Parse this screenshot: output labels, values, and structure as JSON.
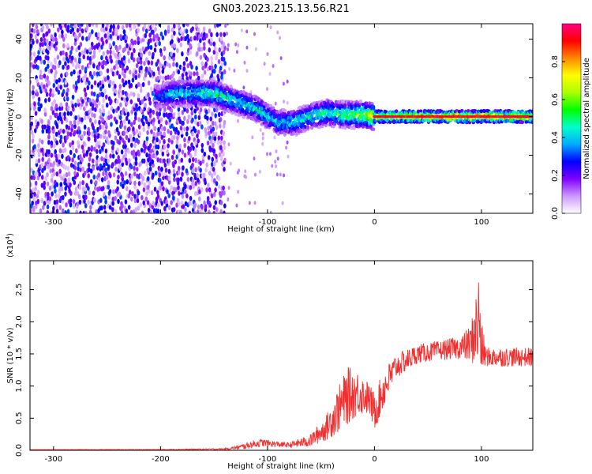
{
  "title": "GN03.2023.215.13.56.R21",
  "chart_data": [
    {
      "type": "heatmap",
      "xlabel": "Height of straight line (km)",
      "ylabel": "Frequency (Hz)",
      "xlim": [
        -322,
        148
      ],
      "ylim": [
        -50,
        48
      ],
      "xticks": [
        -300,
        -200,
        -100,
        0,
        100
      ],
      "yticks": [
        -40,
        -20,
        0,
        20,
        40
      ],
      "colorbar": {
        "label": "Normalized spectral amplitude",
        "range": [
          0,
          1
        ],
        "ticks": [
          0.0,
          0.2,
          0.4,
          0.6,
          0.8
        ],
        "colors": [
          "#ffffff",
          "#cc99ff",
          "#7f00ff",
          "#0000ff",
          "#00aaff",
          "#00ffcc",
          "#00ff00",
          "#aaff00",
          "#ffff00",
          "#ff8800",
          "#ff0000",
          "#ff0080"
        ]
      },
      "ridge": [
        {
          "x": -200,
          "y": 10,
          "a": 0.35
        },
        {
          "x": -190,
          "y": 12,
          "a": 0.45
        },
        {
          "x": -150,
          "y": 12,
          "a": 0.55
        },
        {
          "x": -130,
          "y": 8,
          "a": 0.5
        },
        {
          "x": -110,
          "y": 4,
          "a": 0.5
        },
        {
          "x": -90,
          "y": -3,
          "a": 0.45
        },
        {
          "x": -75,
          "y": -3,
          "a": 0.5
        },
        {
          "x": -60,
          "y": 0,
          "a": 0.5
        },
        {
          "x": -45,
          "y": 2,
          "a": 0.55
        },
        {
          "x": -30,
          "y": 1,
          "a": 0.6
        },
        {
          "x": -10,
          "y": 1,
          "a": 0.7
        },
        {
          "x": 0,
          "y": 0,
          "a": 0.85
        },
        {
          "x": 50,
          "y": 0,
          "a": 0.9
        },
        {
          "x": 100,
          "y": 0,
          "a": 0.9
        },
        {
          "x": 148,
          "y": 0,
          "a": 0.85
        }
      ]
    },
    {
      "type": "line",
      "xlabel": "Height of straight line (km)",
      "ylabel": "SNR (10 * v/v)",
      "yscale_label": "(x10",
      "yscale_exp": "4",
      "yscale_close": ")",
      "xlim": [
        -322,
        148
      ],
      "ylim": [
        0,
        2.95
      ],
      "xticks": [
        -300,
        -200,
        -100,
        0,
        100
      ],
      "yticks": [
        0.0,
        0.5,
        1.0,
        1.5,
        2.0,
        2.5
      ],
      "color": "#f03030",
      "series": [
        {
          "x": [
            -322,
            -200,
            -140,
            -125,
            -115,
            -105,
            -95,
            -80,
            -60,
            -45,
            -35,
            -25,
            -15,
            -5,
            0,
            10,
            20,
            40,
            60,
            80,
            90,
            95,
            98,
            100,
            105,
            120,
            148
          ],
          "values": [
            0.01,
            0.01,
            0.02,
            0.05,
            0.09,
            0.12,
            0.1,
            0.08,
            0.15,
            0.35,
            0.6,
            0.85,
            0.9,
            0.8,
            0.6,
            1.0,
            1.3,
            1.5,
            1.55,
            1.6,
            1.65,
            1.9,
            2.0,
            1.6,
            1.45,
            1.45,
            1.45
          ],
          "noise": [
            0.0,
            0.005,
            0.01,
            0.04,
            0.06,
            0.06,
            0.05,
            0.04,
            0.1,
            0.2,
            0.35,
            0.45,
            0.35,
            0.25,
            0.3,
            0.3,
            0.2,
            0.15,
            0.15,
            0.18,
            0.3,
            0.6,
            0.9,
            0.4,
            0.15,
            0.15,
            0.15
          ]
        }
      ]
    }
  ]
}
